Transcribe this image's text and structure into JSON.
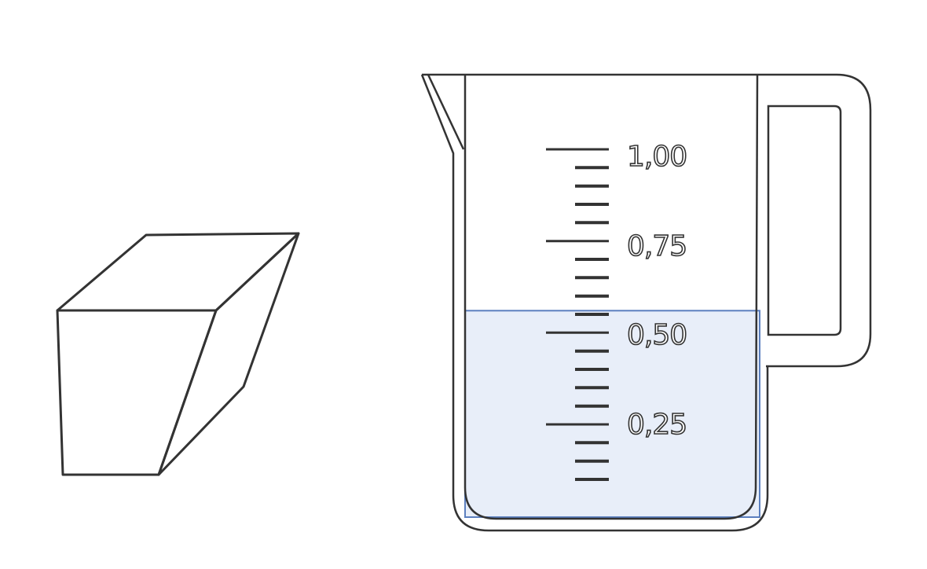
{
  "figure": {
    "shape": "irregular-prism",
    "container": "measuring-jug",
    "colors": {
      "outline": "#333333",
      "water_fill": "#e8eef9",
      "water_edge": "#5b7fbf",
      "tick": "#333333"
    }
  },
  "jug": {
    "scale_labels": [
      "1,00",
      "0,75",
      "0,50",
      "0,25"
    ],
    "scale_values": [
      1.0,
      0.75,
      0.5,
      0.25
    ],
    "ticks_per_major": 5,
    "water_level": 0.56
  }
}
